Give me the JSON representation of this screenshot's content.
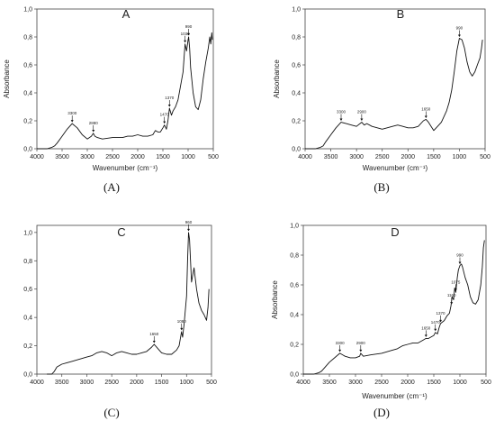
{
  "chart_data": [
    {
      "type": "line",
      "panel_label": "A",
      "caption": "(A)",
      "xlabel": "Wavenumber (cm⁻¹)",
      "ylabel": "Absorbance",
      "xlim": [
        4000,
        500
      ],
      "ylim": [
        0,
        1.0
      ],
      "x_ticks": [
        "4000",
        "3500",
        "3000",
        "2500",
        "2000",
        "1500",
        "1000",
        "500"
      ],
      "y_ticks": [
        "0,0",
        "0,2",
        "0,4",
        "0,6",
        "0,8",
        "1,0"
      ],
      "series": [
        {
          "x": [
            4000,
            3900,
            3800,
            3700,
            3650,
            3600,
            3500,
            3400,
            3300,
            3200,
            3100,
            3000,
            2920,
            2880,
            2850,
            2800,
            2700,
            2500,
            2300,
            2200,
            2100,
            2000,
            1900,
            1800,
            1700,
            1650,
            1600,
            1550,
            1500,
            1470,
            1430,
            1400,
            1370,
            1330,
            1300,
            1250,
            1200,
            1150,
            1100,
            1060,
            1030,
            1000,
            990,
            970,
            950,
            900,
            850,
            800,
            750,
            700,
            650,
            600,
            570,
            550,
            530,
            520
          ],
          "y": [
            0.0,
            0.0,
            0.0,
            0.01,
            0.02,
            0.04,
            0.09,
            0.14,
            0.18,
            0.15,
            0.1,
            0.07,
            0.09,
            0.11,
            0.09,
            0.08,
            0.07,
            0.08,
            0.08,
            0.09,
            0.09,
            0.1,
            0.09,
            0.09,
            0.1,
            0.13,
            0.12,
            0.12,
            0.15,
            0.17,
            0.14,
            0.2,
            0.29,
            0.24,
            0.27,
            0.3,
            0.35,
            0.45,
            0.55,
            0.75,
            0.7,
            0.78,
            0.8,
            0.72,
            0.58,
            0.4,
            0.3,
            0.28,
            0.35,
            0.5,
            0.62,
            0.72,
            0.8,
            0.75,
            0.83,
            0.78
          ]
        }
      ],
      "annotations": [
        {
          "label": "3300",
          "x": 3300,
          "y": 0.18
        },
        {
          "label": "2880",
          "x": 2880,
          "y": 0.11
        },
        {
          "label": "1470",
          "x": 1470,
          "y": 0.17
        },
        {
          "label": "1370",
          "x": 1370,
          "y": 0.29
        },
        {
          "label": "1030",
          "x": 1060,
          "y": 0.75
        },
        {
          "label": "990",
          "x": 990,
          "y": 0.8
        }
      ]
    },
    {
      "type": "line",
      "panel_label": "B",
      "caption": "(B)",
      "xlabel": "Wavenumber (cm⁻¹)",
      "ylabel": "Absorbance",
      "xlim": [
        4000,
        500
      ],
      "ylim": [
        0,
        1.0
      ],
      "x_ticks": [
        "4000",
        "3500",
        "3000",
        "2500",
        "2000",
        "1500",
        "1000",
        "500"
      ],
      "y_ticks": [
        "0,0",
        "0,2",
        "0,4",
        "0,6",
        "0,8",
        "1,0"
      ],
      "series": [
        {
          "x": [
            4000,
            3900,
            3800,
            3700,
            3650,
            3600,
            3500,
            3400,
            3300,
            3200,
            3100,
            3000,
            2900,
            2850,
            2800,
            2700,
            2500,
            2300,
            2200,
            2100,
            2000,
            1900,
            1800,
            1700,
            1650,
            1600,
            1550,
            1500,
            1450,
            1400,
            1350,
            1300,
            1250,
            1200,
            1150,
            1100,
            1050,
            1000,
            950,
            900,
            850,
            800,
            750,
            700,
            650,
            600,
            570,
            550
          ],
          "y": [
            0.0,
            0.0,
            0.0,
            0.01,
            0.02,
            0.05,
            0.1,
            0.15,
            0.19,
            0.18,
            0.17,
            0.16,
            0.19,
            0.17,
            0.18,
            0.16,
            0.14,
            0.16,
            0.17,
            0.16,
            0.15,
            0.15,
            0.16,
            0.2,
            0.21,
            0.19,
            0.16,
            0.13,
            0.15,
            0.17,
            0.19,
            0.23,
            0.27,
            0.33,
            0.42,
            0.55,
            0.7,
            0.79,
            0.78,
            0.72,
            0.62,
            0.55,
            0.52,
            0.55,
            0.6,
            0.65,
            0.72,
            0.78
          ]
        }
      ],
      "annotations": [
        {
          "label": "3300",
          "x": 3300,
          "y": 0.19
        },
        {
          "label": "2900",
          "x": 2900,
          "y": 0.19
        },
        {
          "label": "1650",
          "x": 1650,
          "y": 0.21
        },
        {
          "label": "990",
          "x": 1000,
          "y": 0.79
        }
      ]
    },
    {
      "type": "line",
      "panel_label": "C",
      "caption": "(C)",
      "xlabel": "",
      "ylabel": "",
      "xlim": [
        4000,
        500
      ],
      "ylim": [
        0,
        1.05
      ],
      "x_ticks": [
        "4000",
        "3500",
        "3000",
        "2500",
        "2000",
        "1500",
        "1000",
        "500"
      ],
      "y_ticks": [
        "0,0",
        "0,2",
        "0,4",
        "0,6",
        "0,8",
        "1,0"
      ],
      "series": [
        {
          "x": [
            3800,
            3700,
            3650,
            3600,
            3500,
            3400,
            3300,
            3200,
            3100,
            3000,
            2900,
            2800,
            2700,
            2600,
            2500,
            2400,
            2300,
            2200,
            2100,
            2000,
            1900,
            1800,
            1700,
            1650,
            1600,
            1550,
            1500,
            1400,
            1300,
            1200,
            1150,
            1100,
            1080,
            1050,
            1000,
            980,
            960,
            940,
            920,
            900,
            850,
            800,
            750,
            700,
            650,
            600,
            570,
            550
          ],
          "y": [
            0.0,
            0.0,
            0.02,
            0.05,
            0.07,
            0.08,
            0.09,
            0.1,
            0.11,
            0.12,
            0.13,
            0.15,
            0.16,
            0.15,
            0.13,
            0.15,
            0.16,
            0.15,
            0.14,
            0.14,
            0.15,
            0.16,
            0.19,
            0.21,
            0.19,
            0.17,
            0.15,
            0.14,
            0.14,
            0.17,
            0.2,
            0.3,
            0.26,
            0.35,
            0.55,
            0.8,
            1.0,
            0.95,
            0.8,
            0.65,
            0.75,
            0.6,
            0.5,
            0.45,
            0.42,
            0.38,
            0.47,
            0.6
          ]
        }
      ],
      "annotations": [
        {
          "label": "1650",
          "x": 1650,
          "y": 0.21
        },
        {
          "label": "1080",
          "x": 1100,
          "y": 0.3
        },
        {
          "label": "960",
          "x": 960,
          "y": 1.0
        }
      ]
    },
    {
      "type": "line",
      "panel_label": "D",
      "caption": "(D)",
      "xlabel": "Wavenumber (cm⁻¹)",
      "ylabel": "Absorbance",
      "xlim": [
        4000,
        500
      ],
      "ylim": [
        0,
        1.0
      ],
      "x_ticks": [
        "4000",
        "3500",
        "3000",
        "2500",
        "2000",
        "1500",
        "1000",
        "500"
      ],
      "y_ticks": [
        "0,0",
        "0,2",
        "0,4",
        "0,6",
        "0,8",
        "1,0"
      ],
      "series": [
        {
          "x": [
            4000,
            3900,
            3800,
            3700,
            3650,
            3600,
            3500,
            3400,
            3300,
            3200,
            3100,
            3000,
            2920,
            2900,
            2850,
            2700,
            2500,
            2300,
            2200,
            2100,
            2000,
            1900,
            1800,
            1700,
            1650,
            1600,
            1500,
            1470,
            1430,
            1400,
            1370,
            1300,
            1250,
            1200,
            1170,
            1150,
            1120,
            1100,
            1080,
            1050,
            1030,
            1000,
            970,
            950,
            900,
            850,
            800,
            750,
            700,
            650,
            600,
            570,
            550,
            530
          ],
          "y": [
            0.0,
            0.0,
            0.0,
            0.01,
            0.02,
            0.04,
            0.08,
            0.11,
            0.14,
            0.12,
            0.11,
            0.11,
            0.12,
            0.14,
            0.12,
            0.13,
            0.14,
            0.16,
            0.17,
            0.19,
            0.2,
            0.21,
            0.21,
            0.23,
            0.24,
            0.24,
            0.26,
            0.28,
            0.27,
            0.31,
            0.34,
            0.36,
            0.39,
            0.41,
            0.46,
            0.52,
            0.5,
            0.58,
            0.55,
            0.65,
            0.7,
            0.73,
            0.74,
            0.72,
            0.65,
            0.6,
            0.52,
            0.48,
            0.47,
            0.5,
            0.6,
            0.72,
            0.85,
            0.9
          ]
        }
      ],
      "annotations": [
        {
          "label": "3300",
          "x": 3300,
          "y": 0.14
        },
        {
          "label": "2900",
          "x": 2900,
          "y": 0.14
        },
        {
          "label": "1650",
          "x": 1650,
          "y": 0.24
        },
        {
          "label": "1470",
          "x": 1470,
          "y": 0.28
        },
        {
          "label": "1370",
          "x": 1370,
          "y": 0.34
        },
        {
          "label": "1160",
          "x": 1160,
          "y": 0.46
        },
        {
          "label": "1075",
          "x": 1080,
          "y": 0.55
        },
        {
          "label": "990",
          "x": 1000,
          "y": 0.73
        }
      ]
    }
  ]
}
